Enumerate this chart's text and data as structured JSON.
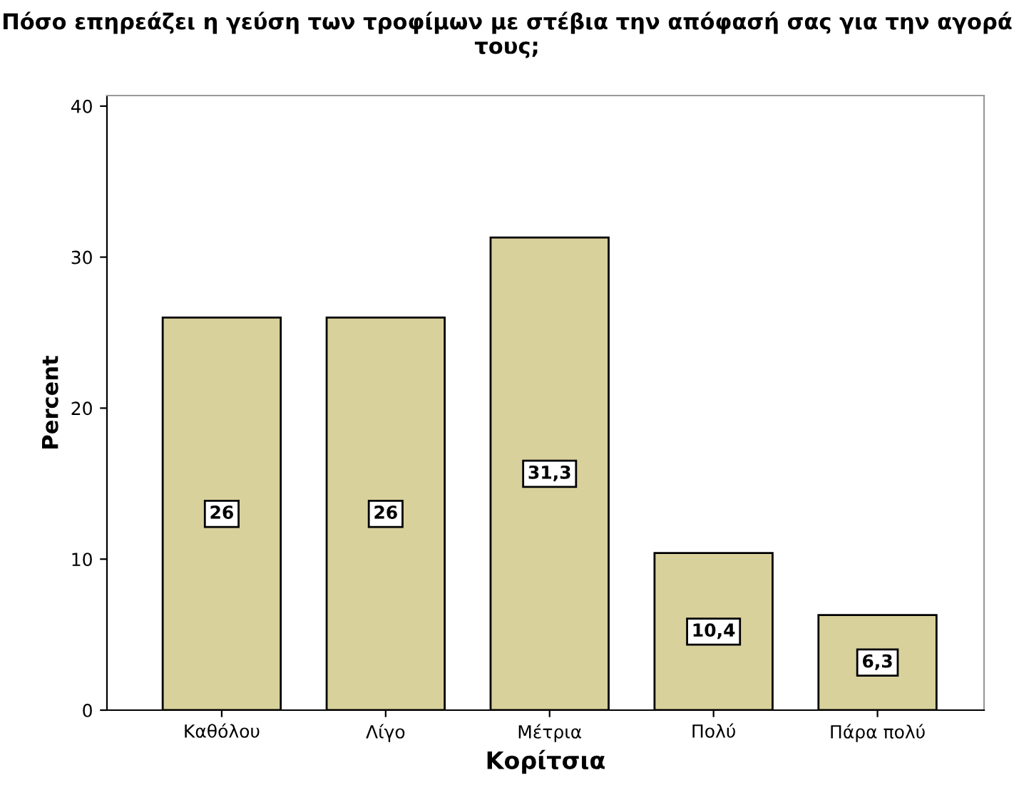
{
  "chart_data": {
    "type": "bar",
    "title": "Πόσο επηρεάζει η γεύση των τροφίμων με στέβια την απόφασή σας για την αγορά τους;",
    "xlabel": "Κορίτσια",
    "ylabel": "Percent",
    "categories": [
      "Καθόλου",
      "Λίγο",
      "Μέτρια",
      "Πολύ",
      "Πάρα πολύ"
    ],
    "values": [
      26,
      26,
      31.3,
      10.4,
      6.3
    ],
    "value_labels": [
      "26",
      "26",
      "31,3",
      "10,4",
      "6,3"
    ],
    "color": "#d9d19c",
    "ylim": [
      0,
      40.7
    ],
    "yticks": [
      0,
      10,
      20,
      30,
      40
    ],
    "grid": false
  }
}
